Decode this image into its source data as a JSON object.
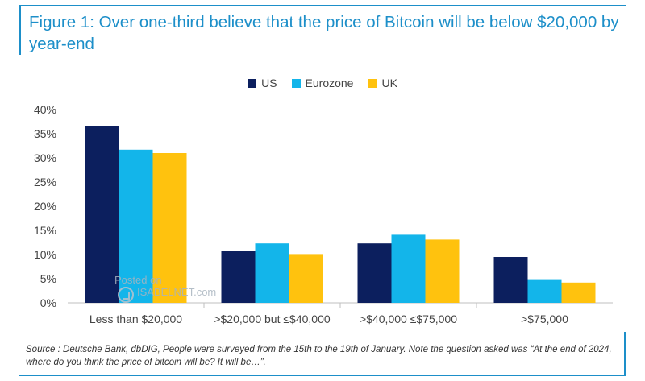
{
  "title": "Figure 1: Over one-third believe that the price of Bitcoin will be below $20,000 by year-end",
  "source": "Source : Deutsche Bank, dbDIG, People were surveyed from the 15th to the 19th of January. Note the question asked was “At the end of 2024, where do you think the price of bitcoin will be? It will be…”.",
  "watermark": {
    "line1": "Posted on",
    "line2": "ISABELNET.com"
  },
  "colors": {
    "US": "#0c1f5e",
    "Eurozone": "#13b5ea",
    "UK": "#ffc20e",
    "accent": "#1d8fc9"
  },
  "chart_data": {
    "type": "bar",
    "categories": [
      "Less than $20,000",
      ">$20,000 but ≤$40,000",
      ">$40,000 ≤$75,000",
      ">$75,000"
    ],
    "series": [
      {
        "name": "US",
        "values": [
          36.5,
          10.8,
          12.3,
          9.5
        ]
      },
      {
        "name": "Eurozone",
        "values": [
          31.7,
          12.3,
          14.1,
          4.9
        ]
      },
      {
        "name": "UK",
        "values": [
          31.0,
          10.1,
          13.1,
          4.2
        ]
      }
    ],
    "ylim": [
      0,
      40
    ],
    "yticks": [
      "0%",
      "5%",
      "10%",
      "15%",
      "20%",
      "25%",
      "30%",
      "35%",
      "40%"
    ],
    "legend_position": "top-center",
    "grid": false
  }
}
